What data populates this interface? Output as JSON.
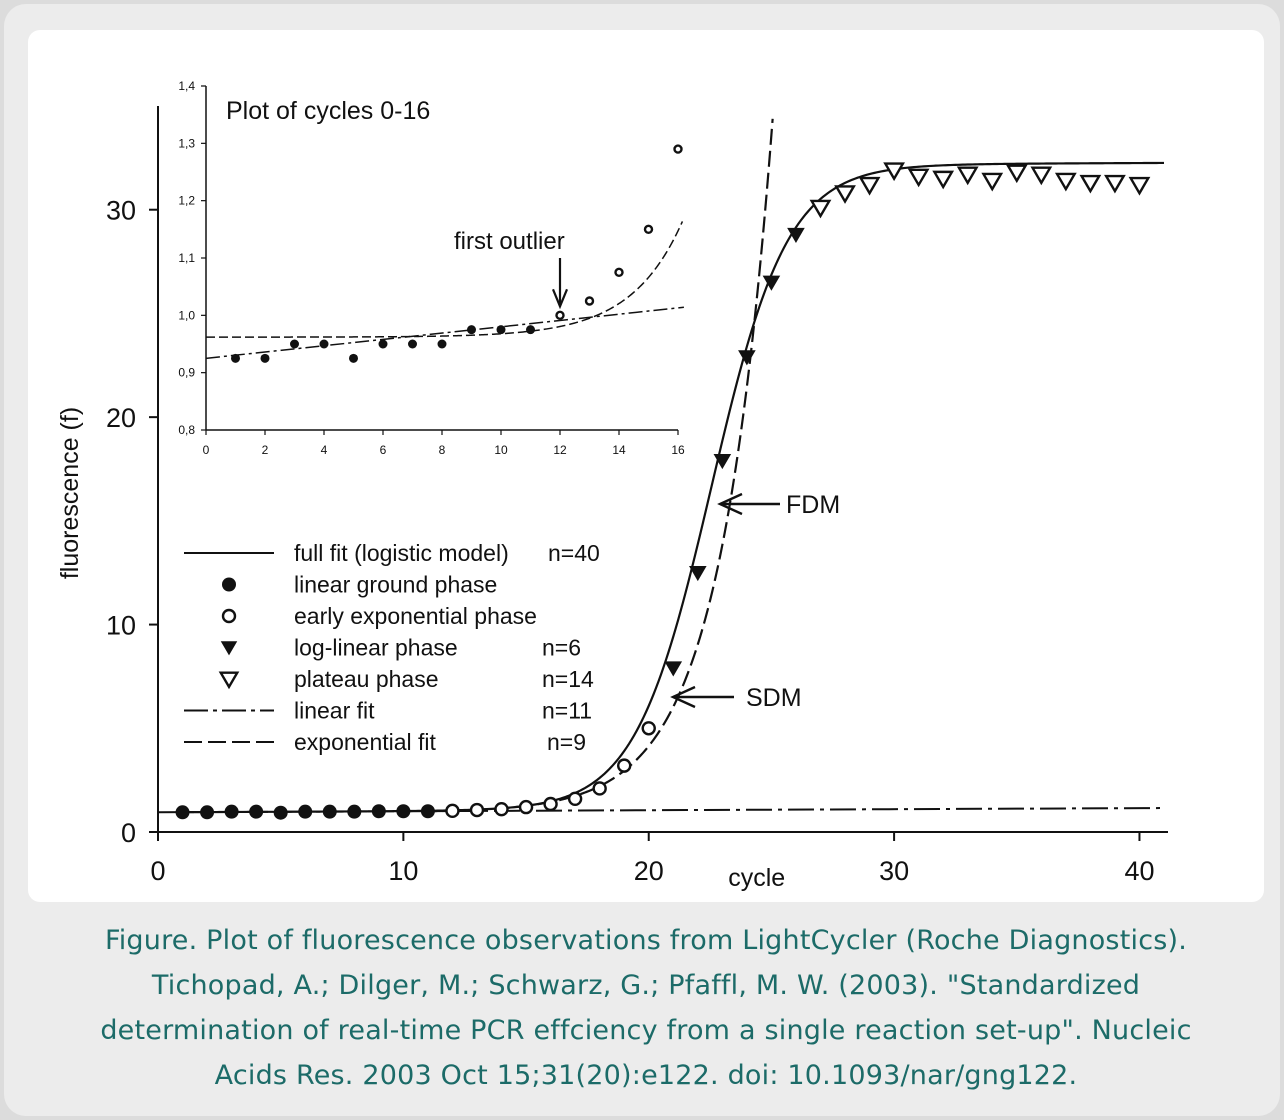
{
  "caption": {
    "line1": "Figure. Plot of fluorescence observations from LightCycler (Roche Diagnostics).",
    "line2": "Tichopad, A.; Dilger, M.; Schwarz, G.; Pfaffl, M. W. (2003). \"Standardized",
    "line3": "determination of real-time PCR effciency from a single reaction set-up\". Nucleic",
    "line4": "Acids Res. 2003 Oct 15;31(20):e122. doi: 10.1093/nar/gng122."
  },
  "chart_data": [
    {
      "type": "scatter",
      "role": "main",
      "xlabel": "cycle",
      "ylabel": "fluorescence (f)",
      "xlim": [
        0,
        41
      ],
      "ylim": [
        0,
        35
      ],
      "xticks": [
        "0",
        "10",
        "20",
        "30",
        "40"
      ],
      "yticks": [
        "0",
        "10",
        "20",
        "30"
      ],
      "series": [
        {
          "name": "linear ground phase",
          "marker": "filled-circle",
          "points": [
            [
              1,
              0.95
            ],
            [
              2,
              0.95
            ],
            [
              3,
              0.98
            ],
            [
              4,
              0.98
            ],
            [
              5,
              0.93
            ],
            [
              6,
              0.98
            ],
            [
              7,
              0.98
            ],
            [
              8,
              0.98
            ],
            [
              9,
              1.0
            ],
            [
              10,
              1.0
            ],
            [
              11,
              1.0
            ]
          ]
        },
        {
          "name": "early exponential phase",
          "marker": "open-circle",
          "points": [
            [
              12,
              1.02
            ],
            [
              13,
              1.06
            ],
            [
              14,
              1.1
            ],
            [
              15,
              1.2
            ],
            [
              16,
              1.35
            ],
            [
              17,
              1.6
            ],
            [
              18,
              2.1
            ],
            [
              19,
              3.2
            ],
            [
              20,
              5.0
            ]
          ]
        },
        {
          "name": "log-linear phase",
          "marker": "filled-triangle",
          "points": [
            [
              21,
              7.9
            ],
            [
              22,
              12.5
            ],
            [
              23,
              17.9
            ],
            [
              24,
              22.9
            ],
            [
              25,
              26.5
            ],
            [
              26,
              28.8
            ]
          ]
        },
        {
          "name": "plateau phase",
          "marker": "open-triangle",
          "points": [
            [
              27,
              30.1
            ],
            [
              28,
              30.8
            ],
            [
              29,
              31.2
            ],
            [
              30,
              31.9
            ],
            [
              31,
              31.6
            ],
            [
              32,
              31.5
            ],
            [
              33,
              31.7
            ],
            [
              34,
              31.4
            ],
            [
              35,
              31.8
            ],
            [
              36,
              31.7
            ],
            [
              37,
              31.4
            ],
            [
              38,
              31.3
            ],
            [
              39,
              31.3
            ],
            [
              40,
              31.2
            ]
          ]
        }
      ],
      "fits": [
        {
          "name": "full fit (logistic model)",
          "n": "n=40",
          "style": "solid"
        },
        {
          "name": "linear fit",
          "n": "n=11",
          "style": "dash-dot"
        },
        {
          "name": "exponential fit",
          "n": "n=9",
          "style": "dashed"
        }
      ],
      "annotations": [
        "FDM",
        "SDM"
      ],
      "legend": [
        {
          "label": "full fit (logistic model)",
          "n": "n=40",
          "symbol": "solid-line"
        },
        {
          "label": "linear ground phase",
          "n": "",
          "symbol": "filled-circle"
        },
        {
          "label": "early exponential phase",
          "n": "",
          "symbol": "open-circle"
        },
        {
          "label": "log-linear phase",
          "n": "n=6",
          "symbol": "filled-triangle"
        },
        {
          "label": "plateau phase",
          "n": "n=14",
          "symbol": "open-triangle"
        },
        {
          "label": "linear fit",
          "n": "n=11",
          "symbol": "dash-dot-line"
        },
        {
          "label": "exponential fit",
          "n": "n=9",
          "symbol": "dashed-line"
        }
      ]
    },
    {
      "type": "scatter",
      "role": "inset",
      "title": "Plot of cycles 0-16",
      "xlim": [
        0,
        16
      ],
      "ylim": [
        0.8,
        1.4
      ],
      "xticks": [
        "0",
        "2",
        "4",
        "6",
        "8",
        "10",
        "12",
        "14",
        "16"
      ],
      "yticks": [
        "0,8",
        "0,9",
        "1,0",
        "1,1",
        "1,2",
        "1,3",
        "1,4"
      ],
      "series": [
        {
          "name": "linear ground phase",
          "marker": "filled-circle",
          "points": [
            [
              1,
              0.925
            ],
            [
              2,
              0.925
            ],
            [
              3,
              0.95
            ],
            [
              4,
              0.95
            ],
            [
              5,
              0.925
            ],
            [
              6,
              0.95
            ],
            [
              7,
              0.95
            ],
            [
              8,
              0.95
            ],
            [
              9,
              0.975
            ],
            [
              10,
              0.975
            ],
            [
              11,
              0.975
            ]
          ]
        },
        {
          "name": "early exponential phase",
          "marker": "open-circle",
          "points": [
            [
              12,
              1.0
            ],
            [
              13,
              1.025
            ],
            [
              14,
              1.075
            ],
            [
              15,
              1.15
            ],
            [
              16,
              1.29
            ]
          ]
        }
      ],
      "annotations": [
        "first outlier"
      ]
    }
  ]
}
